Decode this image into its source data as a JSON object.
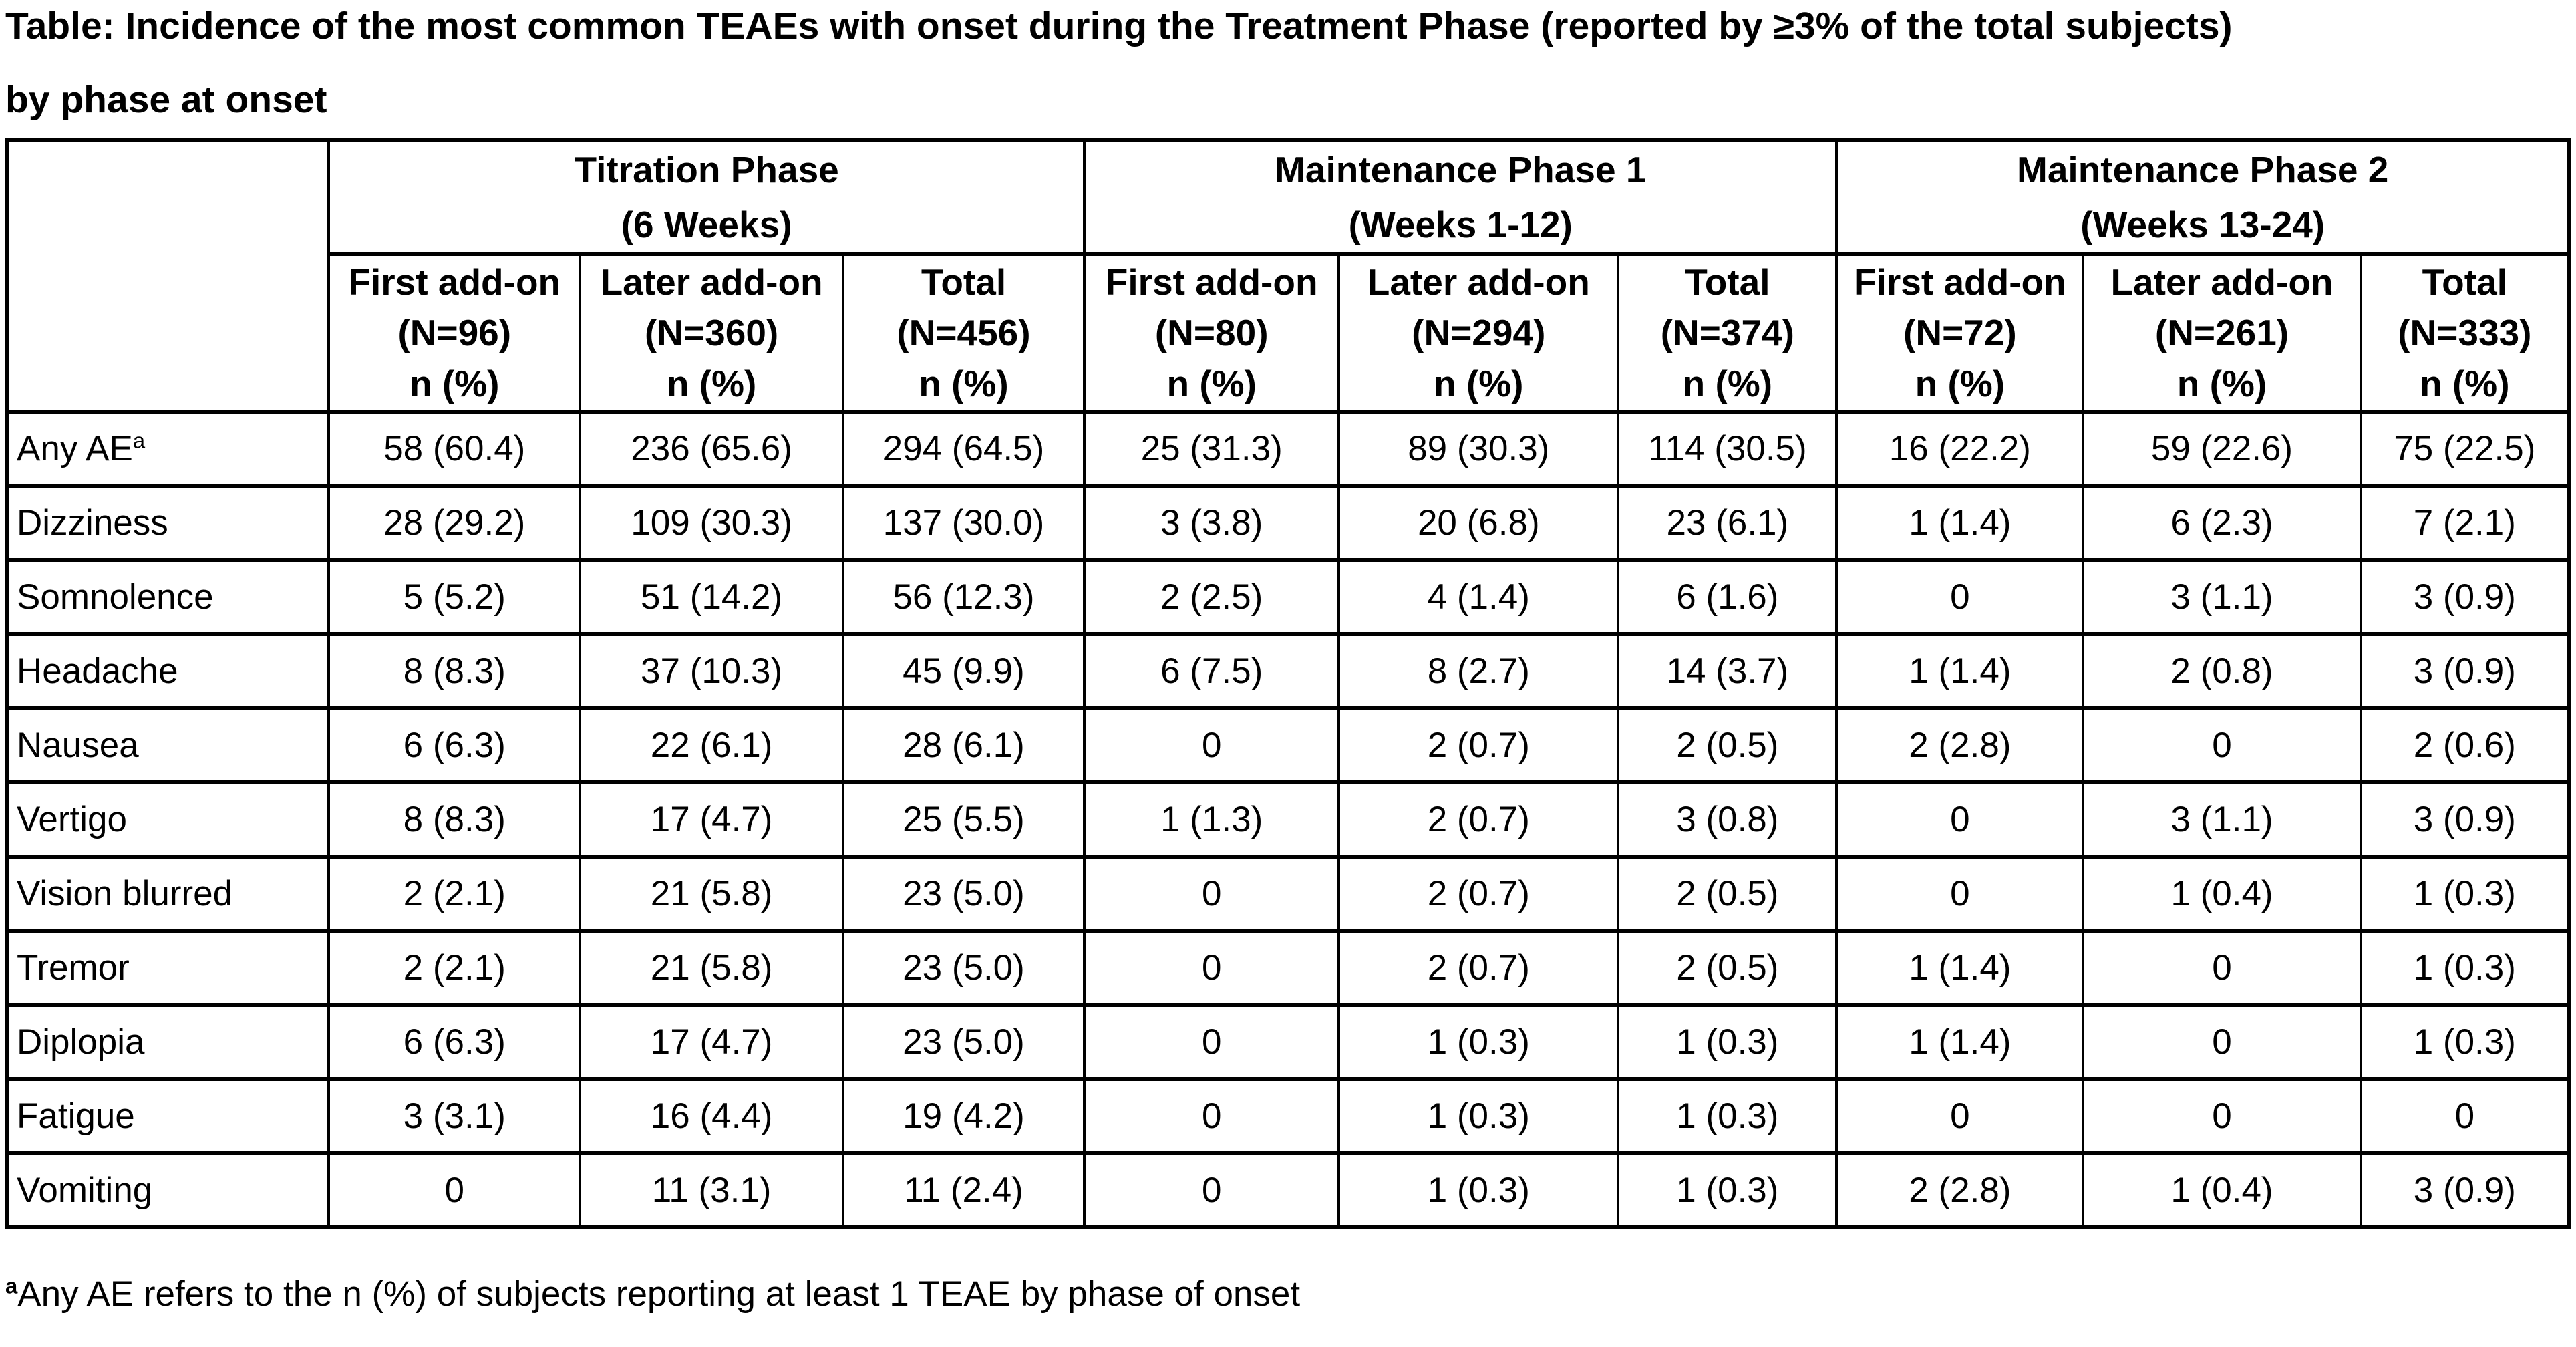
{
  "title_lines": [
    "Table: Incidence of the most common TEAEs with onset during the Treatment Phase (reported by ≥3% of the total subjects)",
    "by phase at onset"
  ],
  "table": {
    "phases": [
      {
        "name": "Titration Phase",
        "weeks": "(6 Weeks)"
      },
      {
        "name": "Maintenance Phase 1",
        "weeks": "(Weeks 1-12)"
      },
      {
        "name": "Maintenance Phase 2",
        "weeks": "(Weeks 13-24)"
      }
    ],
    "columns": [
      {
        "group": "First add-on",
        "n": "(N=96)",
        "unit": "n (%)"
      },
      {
        "group": "Later add-on",
        "n": "(N=360)",
        "unit": "n (%)"
      },
      {
        "group": "Total",
        "n": "(N=456)",
        "unit": "n (%)"
      },
      {
        "group": "First add-on",
        "n": "(N=80)",
        "unit": "n (%)"
      },
      {
        "group": "Later add-on",
        "n": "(N=294)",
        "unit": "n (%)"
      },
      {
        "group": "Total",
        "n": "(N=374)",
        "unit": "n (%)"
      },
      {
        "group": "First add-on",
        "n": "(N=72)",
        "unit": "n (%)"
      },
      {
        "group": "Later add-on",
        "n": "(N=261)",
        "unit": "n (%)"
      },
      {
        "group": "Total",
        "n": "(N=333)",
        "unit": "n (%)"
      }
    ],
    "rows": [
      {
        "label": "Any AE",
        "sup": "a",
        "values": [
          "58 (60.4)",
          "236 (65.6)",
          "294 (64.5)",
          "25 (31.3)",
          "89 (30.3)",
          "114 (30.5)",
          "16 (22.2)",
          "59 (22.6)",
          "75 (22.5)"
        ]
      },
      {
        "label": "Dizziness",
        "sup": "",
        "values": [
          "28 (29.2)",
          "109 (30.3)",
          "137 (30.0)",
          "3 (3.8)",
          "20 (6.8)",
          "23 (6.1)",
          "1 (1.4)",
          "6 (2.3)",
          "7 (2.1)"
        ]
      },
      {
        "label": "Somnolence",
        "sup": "",
        "values": [
          "5 (5.2)",
          "51 (14.2)",
          "56 (12.3)",
          "2 (2.5)",
          "4 (1.4)",
          "6 (1.6)",
          "0",
          "3 (1.1)",
          "3 (0.9)"
        ]
      },
      {
        "label": "Headache",
        "sup": "",
        "values": [
          "8 (8.3)",
          "37 (10.3)",
          "45 (9.9)",
          "6 (7.5)",
          "8 (2.7)",
          "14 (3.7)",
          "1 (1.4)",
          "2 (0.8)",
          "3 (0.9)"
        ]
      },
      {
        "label": "Nausea",
        "sup": "",
        "values": [
          "6 (6.3)",
          "22 (6.1)",
          "28 (6.1)",
          "0",
          "2 (0.7)",
          "2 (0.5)",
          "2 (2.8)",
          "0",
          "2 (0.6)"
        ]
      },
      {
        "label": "Vertigo",
        "sup": "",
        "values": [
          "8 (8.3)",
          "17 (4.7)",
          "25 (5.5)",
          "1 (1.3)",
          "2 (0.7)",
          "3 (0.8)",
          "0",
          "3 (1.1)",
          "3 (0.9)"
        ]
      },
      {
        "label": "Vision blurred",
        "sup": "",
        "values": [
          "2 (2.1)",
          "21 (5.8)",
          "23 (5.0)",
          "0",
          "2 (0.7)",
          "2 (0.5)",
          "0",
          "1 (0.4)",
          "1 (0.3)"
        ]
      },
      {
        "label": "Tremor",
        "sup": "",
        "values": [
          "2 (2.1)",
          "21 (5.8)",
          "23 (5.0)",
          "0",
          "2 (0.7)",
          "2 (0.5)",
          "1 (1.4)",
          "0",
          "1 (0.3)"
        ]
      },
      {
        "label": "Diplopia",
        "sup": "",
        "values": [
          "6 (6.3)",
          "17 (4.7)",
          "23 (5.0)",
          "0",
          "1 (0.3)",
          "1 (0.3)",
          "1 (1.4)",
          "0",
          "1 (0.3)"
        ]
      },
      {
        "label": "Fatigue",
        "sup": "",
        "values": [
          "3 (3.1)",
          "16 (4.4)",
          "19 (4.2)",
          "0",
          "1 (0.3)",
          "1 (0.3)",
          "0",
          "0",
          "0"
        ]
      },
      {
        "label": "Vomiting",
        "sup": "",
        "values": [
          "0",
          "11 (3.1)",
          "11 (2.4)",
          "0",
          "1 (0.3)",
          "1 (0.3)",
          "2 (2.8)",
          "1 (0.4)",
          "3 (0.9)"
        ]
      }
    ]
  },
  "footnote": {
    "marker": "a",
    "text": "Any AE refers to the n (%) of subjects reporting at least 1 TEAE by phase of onset"
  }
}
